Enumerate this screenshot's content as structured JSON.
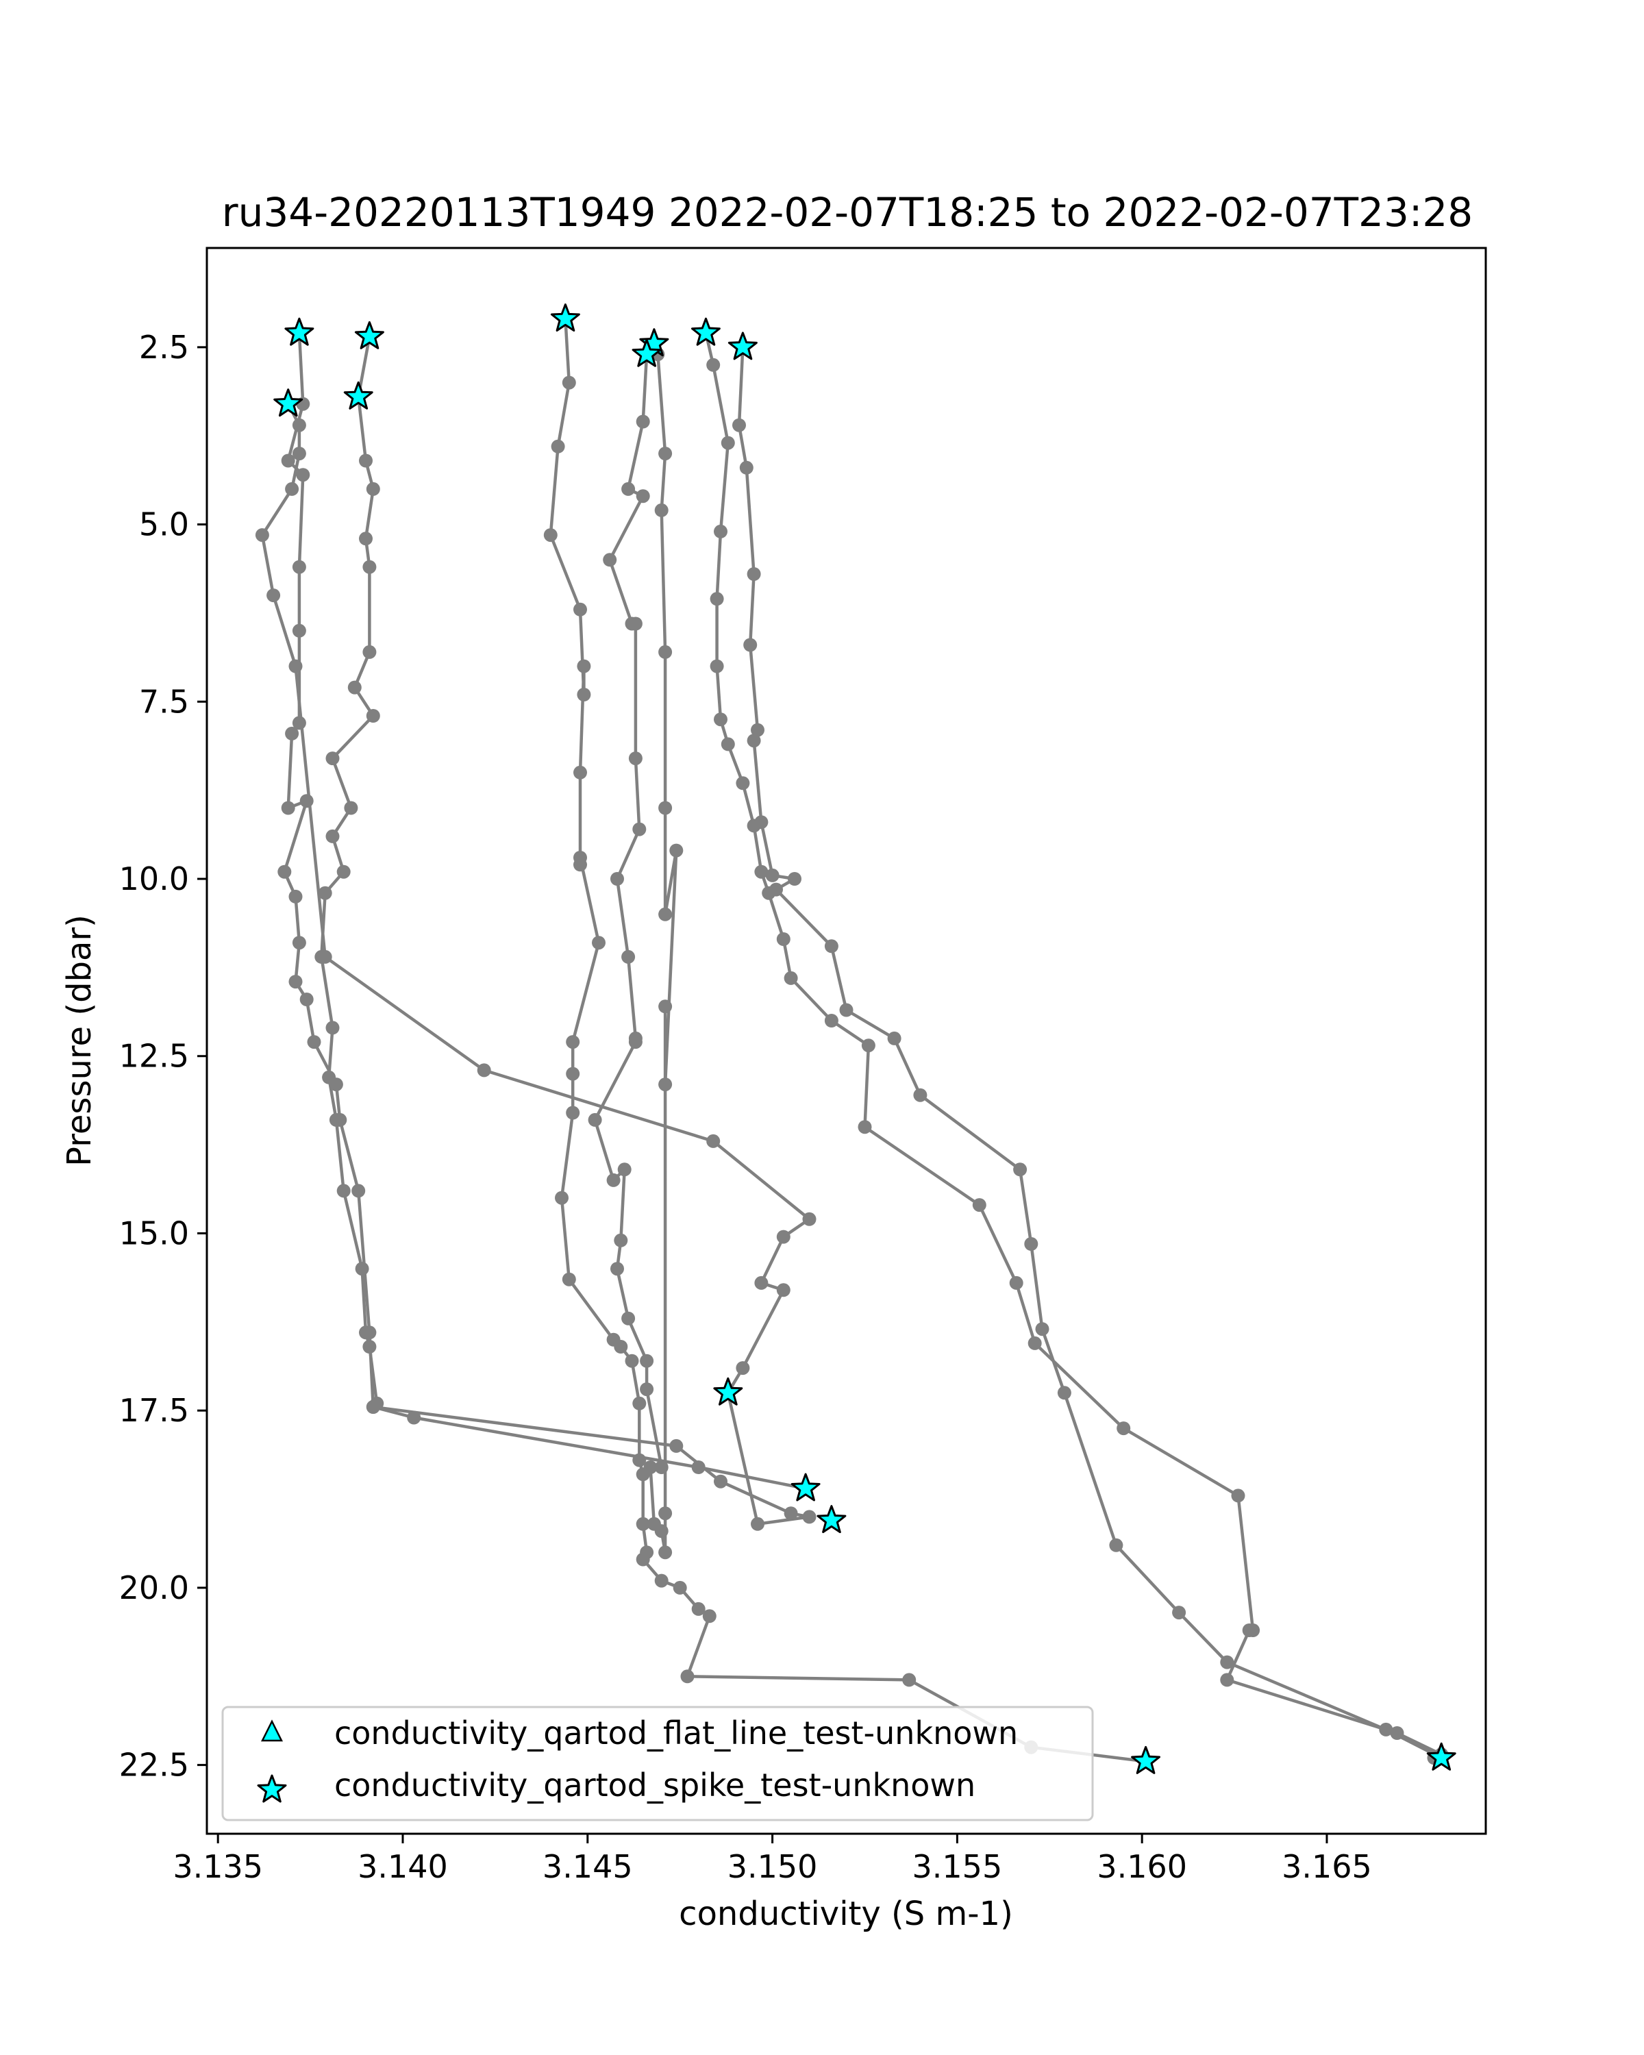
{
  "chart_data": {
    "type": "line",
    "title": "ru34-20220113T1949 2022-02-07T18:25 to 2022-02-07T23:28",
    "xlabel": "conductivity (S m-1)",
    "ylabel": "Pressure (dbar)",
    "xlim": [
      3.1347,
      3.1693
    ],
    "ylim": [
      23.47,
      1.1
    ],
    "y_inverted": true,
    "grid": false,
    "x_ticks": [
      3.135,
      3.14,
      3.145,
      3.15,
      3.155,
      3.16,
      3.165
    ],
    "x_tick_labels": [
      "3.135",
      "3.140",
      "3.145",
      "3.150",
      "3.155",
      "3.160",
      "3.165"
    ],
    "y_ticks": [
      2.5,
      5.0,
      7.5,
      10.0,
      12.5,
      15.0,
      17.5,
      20.0,
      22.5
    ],
    "y_tick_labels": [
      "2.5",
      "5.0",
      "7.5",
      "10.0",
      "12.5",
      "15.0",
      "17.5",
      "20.0",
      "22.5"
    ],
    "line_color": "#808080",
    "flag_color": "#00FFFF",
    "legend": {
      "position": "lower left",
      "entries": [
        {
          "marker": "triangle",
          "label": "conductivity_qartod_flat_line_test-unknown"
        },
        {
          "marker": "star",
          "label": "conductivity_qartod_spike_test-unknown"
        }
      ]
    },
    "series": [
      {
        "x": [
          3.1391,
          3.1388,
          3.139,
          3.1392,
          3.139,
          3.1391,
          3.1391,
          3.1387,
          3.1392,
          3.1381,
          3.1386,
          3.1381,
          3.1384,
          3.1379,
          3.1378,
          3.1381,
          3.138,
          3.1382,
          3.1384,
          3.1389,
          3.139,
          3.1391,
          3.1393,
          3.1392,
          3.1403,
          3.148,
          3.1509
        ],
        "y": [
          2.35,
          3.2,
          4.1,
          4.5,
          5.2,
          5.6,
          6.8,
          7.3,
          7.7,
          8.3,
          9.0,
          9.4,
          9.9,
          10.2,
          11.1,
          12.1,
          12.8,
          13.4,
          14.4,
          15.5,
          16.4,
          16.6,
          17.4,
          17.45,
          17.6,
          18.3,
          18.6
        ]
      },
      {
        "x": [
          3.1372,
          3.1373,
          3.1369,
          3.1373,
          3.1372,
          3.1372,
          3.1372,
          3.137,
          3.1369,
          3.1374,
          3.1368,
          3.1371,
          3.1372,
          3.1371,
          3.1374,
          3.1376,
          3.1382,
          3.1383,
          3.1388,
          3.1391,
          3.1392,
          3.1474,
          3.1486,
          3.1505,
          3.151,
          3.1496,
          3.1488
        ],
        "y": [
          2.3,
          3.3,
          4.1,
          4.3,
          5.6,
          6.5,
          7.8,
          7.95,
          9.0,
          8.9,
          9.9,
          10.25,
          10.9,
          11.45,
          11.7,
          12.3,
          12.9,
          13.4,
          14.4,
          16.4,
          17.45,
          18.0,
          18.5,
          18.95,
          19.0,
          19.1,
          17.25
        ]
      },
      {
        "x": [
          3.1369,
          3.1372,
          3.1372,
          3.137,
          3.1362,
          3.1365,
          3.1371,
          3.1379,
          3.1422,
          3.1484,
          3.151,
          3.1503,
          3.1497,
          3.1503,
          3.1492,
          3.1488
        ],
        "y": [
          3.3,
          3.6,
          4.0,
          4.5,
          5.15,
          6.0,
          7.0,
          11.1,
          12.7,
          13.7,
          14.8,
          15.05,
          15.7,
          15.8,
          16.9,
          17.25
        ]
      },
      {
        "x": [
          3.1444,
          3.1445,
          3.1442,
          3.144,
          3.1448,
          3.1449,
          3.1449,
          3.1448,
          3.1448,
          3.1448,
          3.1453,
          3.1446,
          3.1446,
          3.1446,
          3.1443,
          3.1445,
          3.1457,
          3.1459,
          3.1462,
          3.1464,
          3.1464,
          3.1465,
          3.1465,
          3.1466,
          3.1465,
          3.147,
          3.1475,
          3.148,
          3.1483,
          3.1477,
          3.1537,
          3.157,
          3.1601
        ],
        "y": [
          2.1,
          3.0,
          3.9,
          5.15,
          6.2,
          7.4,
          7.0,
          8.5,
          9.8,
          9.7,
          10.9,
          12.3,
          12.75,
          13.3,
          14.5,
          15.65,
          16.5,
          16.6,
          16.8,
          17.4,
          18.2,
          18.4,
          19.1,
          19.5,
          19.6,
          19.9,
          20.0,
          20.3,
          20.4,
          21.25,
          21.3,
          22.25,
          22.45
        ]
      },
      {
        "x": [
          3.1468,
          3.1466,
          3.1465,
          3.1461,
          3.1465,
          3.1456,
          3.1462,
          3.1463,
          3.1463,
          3.1464,
          3.1458,
          3.1461,
          3.1463,
          3.1463,
          3.1452,
          3.1457,
          3.146,
          3.1459,
          3.1458,
          3.1461,
          3.1466,
          3.1466,
          3.147,
          3.1467,
          3.1468,
          3.147,
          3.1471,
          3.1471,
          3.1471,
          3.1471,
          3.1474,
          3.1471,
          3.1471,
          3.1471,
          3.147,
          3.1471,
          3.1469
        ],
        "y": [
          2.45,
          2.6,
          3.55,
          4.5,
          4.6,
          5.5,
          6.4,
          6.4,
          8.3,
          9.3,
          10.0,
          11.1,
          12.25,
          12.3,
          13.4,
          14.25,
          14.1,
          15.1,
          15.5,
          16.2,
          16.8,
          17.2,
          18.3,
          18.3,
          19.1,
          19.2,
          19.5,
          18.95,
          11.8,
          12.9,
          9.6,
          10.5,
          9.0,
          6.8,
          4.8,
          4.0,
          2.6
        ]
      },
      {
        "x": [
          3.1482,
          3.1484,
          3.1488,
          3.1486,
          3.1485,
          3.1485,
          3.1486,
          3.1488,
          3.1492,
          3.1495,
          3.1497,
          3.1499,
          3.1503,
          3.1505,
          3.1516,
          3.1526,
          3.1525,
          3.1556,
          3.1566,
          3.1571,
          3.1595,
          3.1626,
          3.163,
          3.1629,
          3.1623,
          3.1669,
          3.1681,
          3.1679
        ],
        "y": [
          2.3,
          2.75,
          3.85,
          5.1,
          6.05,
          7.0,
          7.75,
          8.1,
          8.65,
          9.25,
          9.9,
          10.2,
          10.85,
          11.4,
          12.0,
          12.35,
          13.5,
          14.6,
          15.7,
          16.55,
          17.75,
          18.7,
          20.6,
          20.6,
          21.3,
          22.05,
          22.35,
          22.4
        ]
      },
      {
        "x": [
          3.1492,
          3.1491,
          3.1493,
          3.1495,
          3.1494,
          3.1496,
          3.1495,
          3.1497,
          3.15,
          3.1506,
          3.1501,
          3.1516,
          3.152,
          3.1533,
          3.154,
          3.1567,
          3.157,
          3.1573,
          3.1579,
          3.1593,
          3.161,
          3.1623,
          3.1666,
          3.1681
        ],
        "y": [
          2.5,
          3.6,
          4.2,
          5.7,
          6.7,
          7.9,
          8.05,
          9.2,
          9.95,
          10.0,
          10.15,
          10.95,
          11.85,
          12.25,
          13.05,
          14.1,
          15.15,
          16.35,
          17.25,
          19.4,
          20.35,
          21.05,
          22.0,
          22.4
        ]
      }
    ],
    "spike_flags": {
      "x": [
        3.1372,
        3.1391,
        3.1388,
        3.1369,
        3.1444,
        3.1468,
        3.1466,
        3.1482,
        3.1492,
        3.1488,
        3.1509,
        3.1516,
        3.1601,
        3.1681
      ],
      "y": [
        2.3,
        2.35,
        3.2,
        3.3,
        2.1,
        2.45,
        2.6,
        2.3,
        2.5,
        17.25,
        18.6,
        19.05,
        22.45,
        22.4
      ]
    }
  }
}
